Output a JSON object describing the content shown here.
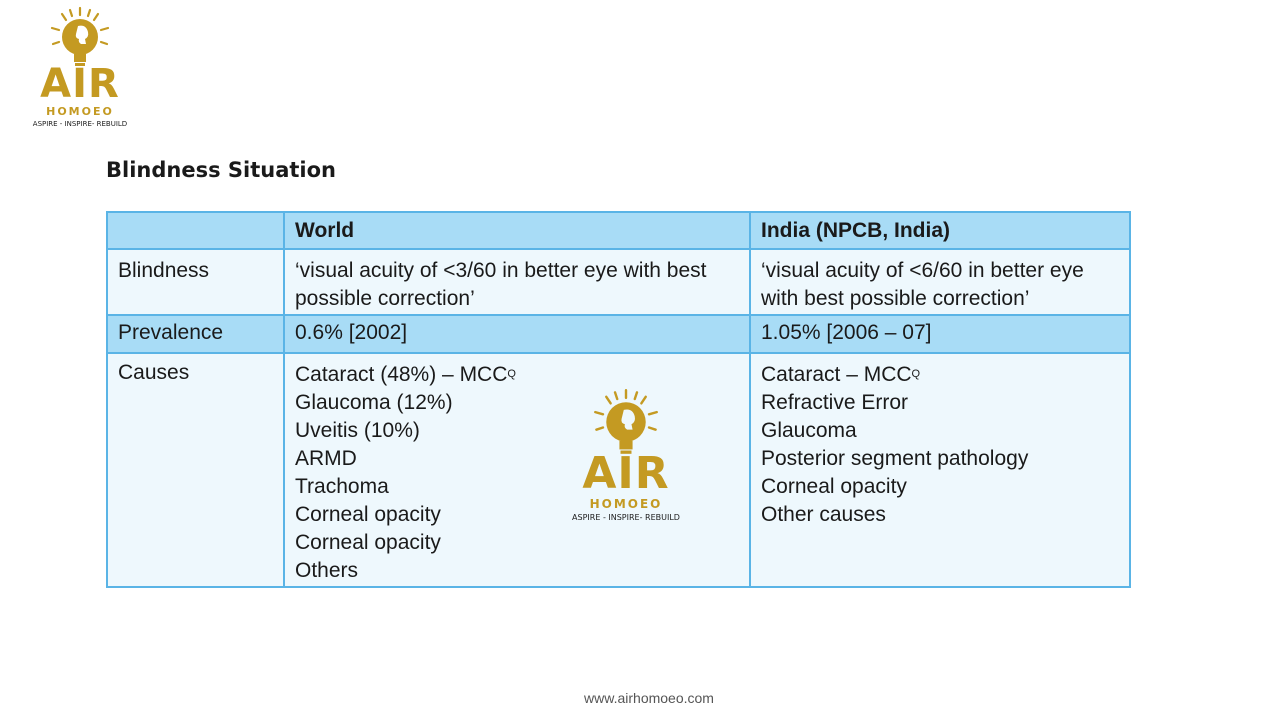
{
  "logo": {
    "brand": "AIR",
    "sub": "HOMOEO",
    "tagline": "ASPIRE - INSPIRE- REBUILD",
    "icon": "lightbulb-head-icon",
    "color": "#c49a22"
  },
  "title": "Blindness Situation",
  "table": {
    "headers": [
      "",
      "World",
      "India (NPCB, India)"
    ],
    "blindness": {
      "label": "Blindness",
      "world": "‘visual acuity of <3/60 in better eye with best possible correction’",
      "india": "‘visual acuity of <6/60 in better eye with best possible correction’"
    },
    "prevalence": {
      "label": "Prevalence",
      "world": "0.6% [2002]",
      "india": "1.05% [2006 – 07]"
    },
    "causes": {
      "label": "Causes",
      "world": [
        "Cataract (48%) – MCC",
        "Glaucoma (12%)",
        "Uveitis (10%)",
        "ARMD",
        "Trachoma",
        "Corneal opacity",
        "Corneal opacity",
        "Others"
      ],
      "india": [
        "Cataract – MCC",
        "Refractive Error",
        "Glaucoma",
        "Posterior segment pathology",
        "Corneal opacity",
        "Other causes"
      ],
      "superscript": "Q"
    },
    "header_color": "#a8dcf6",
    "border_color": "#5ab4e6"
  },
  "footer": "www.airhomoeo.com"
}
